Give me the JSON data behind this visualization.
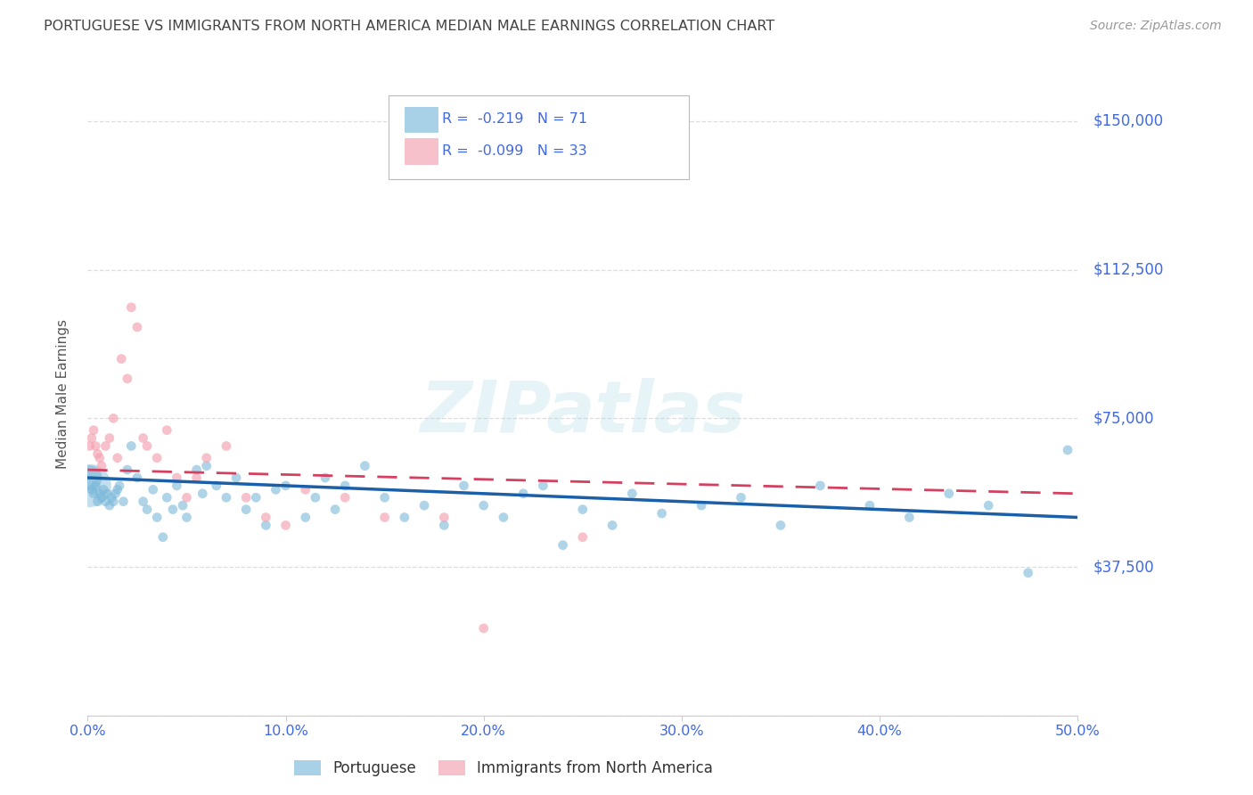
{
  "title": "PORTUGUESE VS IMMIGRANTS FROM NORTH AMERICA MEDIAN MALE EARNINGS CORRELATION CHART",
  "source": "Source: ZipAtlas.com",
  "ylabel": "Median Male Earnings",
  "xlim": [
    0.0,
    0.5
  ],
  "ylim": [
    0,
    162500
  ],
  "yticks": [
    0,
    37500,
    75000,
    112500,
    150000
  ],
  "xticks": [
    0.0,
    0.1,
    0.2,
    0.3,
    0.4,
    0.5
  ],
  "portuguese_color": "#7ab8d9",
  "immigrants_color": "#f4a0b0",
  "trend_portuguese_color": "#1a5fa8",
  "trend_immigrants_color": "#d44060",
  "background_color": "#ffffff",
  "grid_color": "#dddddd",
  "label_color": "#4169e1",
  "title_color": "#444444",
  "portuguese_R": -0.219,
  "portuguese_N": 71,
  "immigrants_R": -0.099,
  "immigrants_N": 33,
  "portuguese_x": [
    0.001,
    0.002,
    0.003,
    0.004,
    0.005,
    0.006,
    0.007,
    0.008,
    0.009,
    0.01,
    0.011,
    0.012,
    0.013,
    0.014,
    0.015,
    0.016,
    0.018,
    0.02,
    0.022,
    0.025,
    0.028,
    0.03,
    0.033,
    0.035,
    0.038,
    0.04,
    0.043,
    0.045,
    0.048,
    0.05,
    0.055,
    0.058,
    0.06,
    0.065,
    0.07,
    0.075,
    0.08,
    0.085,
    0.09,
    0.095,
    0.1,
    0.11,
    0.115,
    0.12,
    0.125,
    0.13,
    0.14,
    0.15,
    0.16,
    0.17,
    0.18,
    0.19,
    0.2,
    0.21,
    0.22,
    0.23,
    0.24,
    0.25,
    0.265,
    0.275,
    0.29,
    0.31,
    0.33,
    0.35,
    0.37,
    0.395,
    0.415,
    0.435,
    0.455,
    0.475,
    0.495
  ],
  "portuguese_y": [
    60000,
    57000,
    56000,
    58000,
    54000,
    56000,
    55000,
    57000,
    54000,
    56000,
    53000,
    55000,
    54000,
    56000,
    57000,
    58000,
    54000,
    62000,
    68000,
    60000,
    54000,
    52000,
    57000,
    50000,
    45000,
    55000,
    52000,
    58000,
    53000,
    50000,
    62000,
    56000,
    63000,
    58000,
    55000,
    60000,
    52000,
    55000,
    48000,
    57000,
    58000,
    50000,
    55000,
    60000,
    52000,
    58000,
    63000,
    55000,
    50000,
    53000,
    48000,
    58000,
    53000,
    50000,
    56000,
    58000,
    43000,
    52000,
    48000,
    56000,
    51000,
    53000,
    55000,
    48000,
    58000,
    53000,
    50000,
    56000,
    53000,
    36000,
    67000
  ],
  "portuguese_sizes": [
    400,
    60,
    60,
    60,
    60,
    60,
    60,
    60,
    60,
    60,
    60,
    60,
    60,
    60,
    60,
    60,
    60,
    60,
    60,
    60,
    60,
    60,
    60,
    60,
    60,
    60,
    60,
    60,
    60,
    60,
    60,
    60,
    60,
    60,
    60,
    60,
    60,
    60,
    60,
    60,
    60,
    60,
    60,
    60,
    60,
    60,
    60,
    60,
    60,
    60,
    60,
    60,
    60,
    60,
    60,
    60,
    60,
    60,
    60,
    60,
    60,
    60,
    60,
    60,
    60,
    60,
    60,
    60,
    60,
    60,
    60
  ],
  "immigrants_x": [
    0.001,
    0.002,
    0.003,
    0.004,
    0.005,
    0.006,
    0.007,
    0.009,
    0.011,
    0.013,
    0.015,
    0.017,
    0.02,
    0.022,
    0.025,
    0.028,
    0.03,
    0.035,
    0.04,
    0.045,
    0.05,
    0.055,
    0.06,
    0.07,
    0.08,
    0.09,
    0.1,
    0.11,
    0.13,
    0.15,
    0.18,
    0.2,
    0.25
  ],
  "immigrants_y": [
    68000,
    70000,
    72000,
    68000,
    66000,
    65000,
    63000,
    68000,
    70000,
    75000,
    65000,
    90000,
    85000,
    103000,
    98000,
    70000,
    68000,
    65000,
    72000,
    60000,
    55000,
    60000,
    65000,
    68000,
    55000,
    50000,
    48000,
    57000,
    55000,
    50000,
    50000,
    22000,
    45000
  ],
  "immigrants_sizes": [
    60,
    60,
    60,
    60,
    60,
    60,
    60,
    60,
    60,
    60,
    60,
    60,
    60,
    60,
    60,
    60,
    60,
    60,
    60,
    60,
    60,
    60,
    60,
    60,
    60,
    60,
    60,
    60,
    60,
    60,
    60,
    60,
    60
  ],
  "trend_port_x0": 0.0,
  "trend_port_x1": 0.5,
  "trend_port_y0": 60000,
  "trend_port_y1": 50000,
  "trend_imm_x0": 0.0,
  "trend_imm_x1": 0.5,
  "trend_imm_y0": 62000,
  "trend_imm_y1": 56000
}
